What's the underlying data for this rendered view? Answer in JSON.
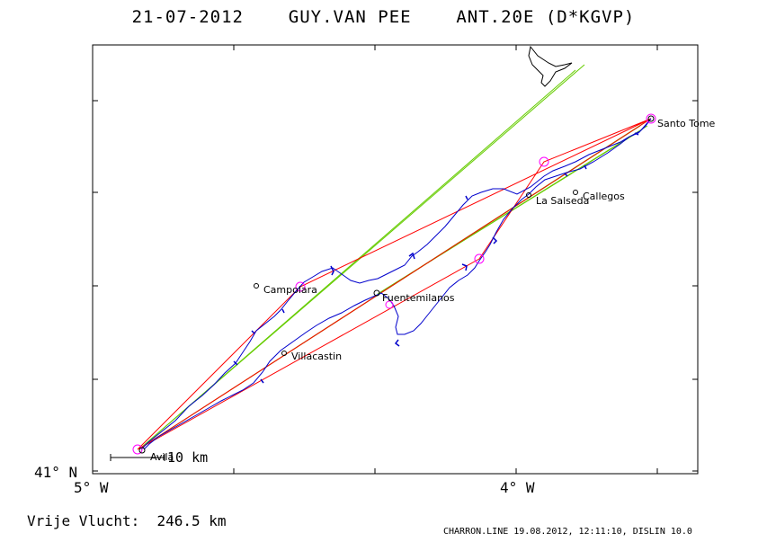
{
  "header": {
    "title": "21-07-2012    GUY.VAN PEE    ANT.20E (D*KGVP)"
  },
  "map": {
    "axes": {
      "lat_label": "41° N",
      "lon_labels": [
        "5° W",
        "4° W"
      ]
    },
    "scale_label": "10 km",
    "places": [
      {
        "name": "Santo Tome",
        "kind": "turnpoint"
      },
      {
        "name": "La Salseda",
        "kind": "town"
      },
      {
        "name": "Callegos",
        "kind": "town"
      },
      {
        "name": "Campolara",
        "kind": "town"
      },
      {
        "name": "Fuentemilanos",
        "kind": "turnpoint"
      },
      {
        "name": "Villacastin",
        "kind": "town"
      },
      {
        "name": "Avila",
        "kind": "start"
      }
    ],
    "colors": {
      "track": "#0000cc",
      "task_line": "#ff0000",
      "sector_line": "#66cc00",
      "turnpoint_circle": "#ff00ff",
      "coast": "#000000"
    }
  },
  "footer": {
    "free_flight": "Vrije Vlucht:  246.5 km",
    "credit": "CHARRON.LINE 19.08.2012, 12:11:10, DISLIN 10.0"
  }
}
